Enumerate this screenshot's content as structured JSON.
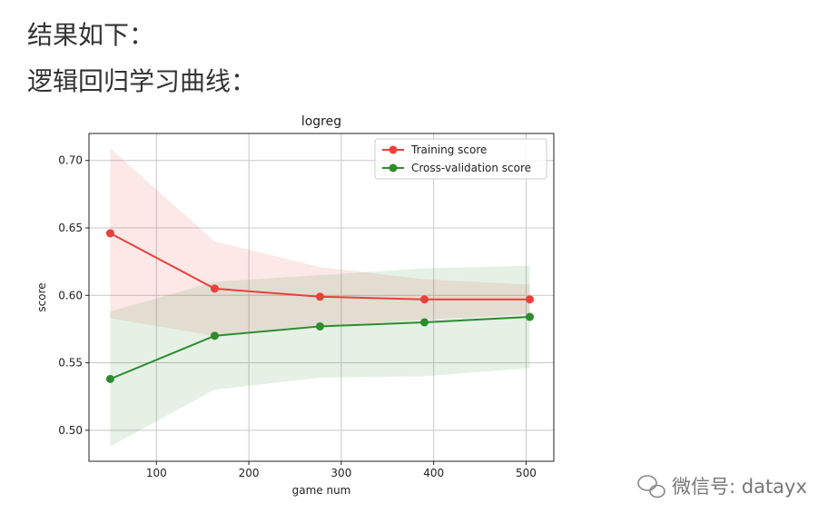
{
  "header": {
    "line1": "结果如下：",
    "line2": "逻辑回归学习曲线："
  },
  "watermark": "微信号: datayx",
  "chart_data": {
    "type": "line",
    "title": "logreg",
    "xlabel": "game num",
    "ylabel": "score",
    "x": [
      50,
      163,
      277,
      390,
      504
    ],
    "series": [
      {
        "name": "Training score",
        "color": "#e8413a",
        "values": [
          0.646,
          0.605,
          0.599,
          0.597,
          0.597
        ],
        "upper": [
          0.709,
          0.64,
          0.621,
          0.612,
          0.608
        ],
        "lower": [
          0.583,
          0.57,
          0.577,
          0.582,
          0.586
        ]
      },
      {
        "name": "Cross-validation score",
        "color": "#2e8b2e",
        "values": [
          0.538,
          0.57,
          0.577,
          0.58,
          0.584
        ],
        "upper": [
          0.588,
          0.61,
          0.615,
          0.62,
          0.622
        ],
        "lower": [
          0.488,
          0.53,
          0.539,
          0.54,
          0.546
        ]
      }
    ],
    "xlim": [
      27,
      530
    ],
    "ylim": [
      0.477,
      0.72
    ],
    "xticks": [
      100,
      200,
      300,
      400,
      500
    ],
    "yticks": [
      {
        "value": 0.5,
        "label": "0.50"
      },
      {
        "value": 0.55,
        "label": "0.55"
      },
      {
        "value": 0.6,
        "label": "0.60"
      },
      {
        "value": 0.65,
        "label": "0.65"
      },
      {
        "value": 0.7,
        "label": "0.70"
      }
    ],
    "grid": true,
    "legend": "upper right"
  }
}
